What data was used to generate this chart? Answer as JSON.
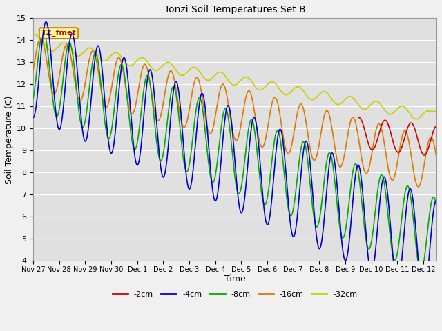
{
  "title": "Tonzi Soil Temperatures Set B",
  "xlabel": "Time",
  "ylabel": "Soil Temperature (C)",
  "ylim": [
    4.0,
    15.0
  ],
  "yticks": [
    4.0,
    5.0,
    6.0,
    7.0,
    8.0,
    9.0,
    10.0,
    11.0,
    12.0,
    13.0,
    14.0,
    15.0
  ],
  "series_labels": [
    "-2cm",
    "-4cm",
    "-8cm",
    "-16cm",
    "-32cm"
  ],
  "series_colors": [
    "#cc0000",
    "#0000cc",
    "#00aa00",
    "#dd7700",
    "#cccc00"
  ],
  "annotation_label": "TZ_fmet",
  "annotation_color": "#cc0000",
  "annotation_bg": "#ffff99",
  "annotation_border": "#cc8800",
  "fig_width": 6.4,
  "fig_height": 4.8,
  "dpi": 100,
  "xtick_labels": [
    "Nov 27",
    "Nov 28",
    "Nov 29",
    "Nov 30",
    "Dec 1",
    "Dec 2",
    "Dec 3",
    "Dec 4",
    "Dec 5",
    "Dec 6",
    "Dec 7",
    "Dec 8",
    "Dec 9",
    "Dec 10",
    "Dec 11",
    "Dec 12"
  ],
  "xtick_positions": [
    0,
    1,
    2,
    3,
    4,
    5,
    6,
    7,
    8,
    9,
    10,
    11,
    12,
    13,
    14,
    15
  ]
}
